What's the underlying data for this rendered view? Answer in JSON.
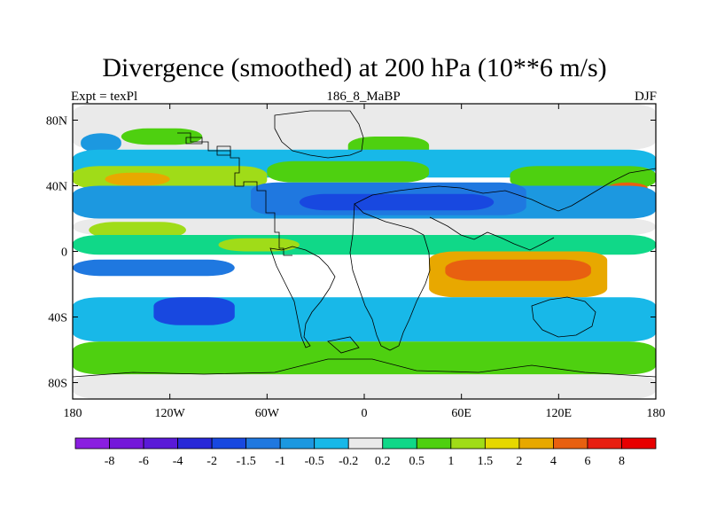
{
  "title": "Divergence (smoothed) at 200 hPa (10**6 m/s)",
  "subtitle": {
    "left": "Expt = texPl",
    "center": "186_8_MaBP",
    "right": "DJF"
  },
  "chart_data": {
    "type": "heatmap",
    "title": "Divergence (smoothed) at 200 hPa (10**6 m/s)",
    "xlabel": "",
    "ylabel": "",
    "xlim": [
      -180,
      180
    ],
    "ylim": [
      -90,
      90
    ],
    "x_ticks": [
      {
        "value": -180,
        "label": "180"
      },
      {
        "value": -120,
        "label": "120W"
      },
      {
        "value": -60,
        "label": "60W"
      },
      {
        "value": 0,
        "label": "0"
      },
      {
        "value": 60,
        "label": "60E"
      },
      {
        "value": 120,
        "label": "120E"
      },
      {
        "value": 180,
        "label": "180"
      }
    ],
    "y_ticks": [
      {
        "value": 80,
        "label": "80N"
      },
      {
        "value": 40,
        "label": "40N"
      },
      {
        "value": 0,
        "label": "0"
      },
      {
        "value": -40,
        "label": "40S"
      },
      {
        "value": -80,
        "label": "80S"
      }
    ],
    "colorbar": {
      "levels": [
        "-8",
        "-6",
        "-4",
        "-2",
        "-1.5",
        "-1",
        "-0.5",
        "-0.2",
        "0.2",
        "0.5",
        "1",
        "1.5",
        "2",
        "4",
        "6",
        "8"
      ],
      "colors": [
        "#8a1ee0",
        "#7418da",
        "#5a1ad8",
        "#2828d8",
        "#1848e0",
        "#1f78e0",
        "#1c98e0",
        "#18b8e8",
        "#eaeaea",
        "#10d888",
        "#4ed010",
        "#a0dc18",
        "#e6d800",
        "#e8a800",
        "#e86010",
        "#e81e10",
        "#e80000"
      ]
    },
    "regions": [
      {
        "lon": [
          -180,
          180
        ],
        "lat": [
          62,
          90
        ],
        "value": 0
      },
      {
        "lon": [
          -175,
          -150
        ],
        "lat": [
          60,
          72
        ],
        "value": -1
      },
      {
        "lon": [
          -150,
          -100
        ],
        "lat": [
          65,
          75
        ],
        "value": 0.5
      },
      {
        "lon": [
          -10,
          40
        ],
        "lat": [
          55,
          70
        ],
        "value": 0.5
      },
      {
        "lon": [
          -180,
          180
        ],
        "lat": [
          45,
          62
        ],
        "value": -0.5
      },
      {
        "lon": [
          -180,
          -60
        ],
        "lat": [
          38,
          52
        ],
        "value": 1
      },
      {
        "lon": [
          -160,
          -120
        ],
        "lat": [
          40,
          48
        ],
        "value": 2
      },
      {
        "lon": [
          -60,
          40
        ],
        "lat": [
          42,
          55
        ],
        "value": 0.5
      },
      {
        "lon": [
          90,
          180
        ],
        "lat": [
          38,
          52
        ],
        "value": 0.5
      },
      {
        "lon": [
          150,
          175
        ],
        "lat": [
          35,
          42
        ],
        "value": 4
      },
      {
        "lon": [
          -180,
          180
        ],
        "lat": [
          20,
          40
        ],
        "value": -1
      },
      {
        "lon": [
          -70,
          100
        ],
        "lat": [
          22,
          42
        ],
        "value": -1.5
      },
      {
        "lon": [
          -40,
          80
        ],
        "lat": [
          25,
          35
        ],
        "value": -2
      },
      {
        "lon": [
          -180,
          180
        ],
        "lat": [
          10,
          20
        ],
        "value": -0.2
      },
      {
        "lon": [
          -170,
          -110
        ],
        "lat": [
          8,
          18
        ],
        "value": 1
      },
      {
        "lon": [
          -180,
          180
        ],
        "lat": [
          -2,
          10
        ],
        "value": 0.2
      },
      {
        "lon": [
          -90,
          -40
        ],
        "lat": [
          0,
          8
        ],
        "value": 1
      },
      {
        "lon": [
          -180,
          -80
        ],
        "lat": [
          -15,
          -5
        ],
        "value": -1.5
      },
      {
        "lon": [
          40,
          150
        ],
        "lat": [
          -28,
          0
        ],
        "value": 2
      },
      {
        "lon": [
          50,
          140
        ],
        "lat": [
          -18,
          -5
        ],
        "value": 4
      },
      {
        "lon": [
          -180,
          180
        ],
        "lat": [
          -55,
          -28
        ],
        "value": -0.5
      },
      {
        "lon": [
          -130,
          -80
        ],
        "lat": [
          -45,
          -28
        ],
        "value": -2
      },
      {
        "lon": [
          -180,
          180
        ],
        "lat": [
          -75,
          -55
        ],
        "value": 0.5
      },
      {
        "lon": [
          -180,
          180
        ],
        "lat": [
          -90,
          -75
        ],
        "value": 0
      }
    ]
  }
}
